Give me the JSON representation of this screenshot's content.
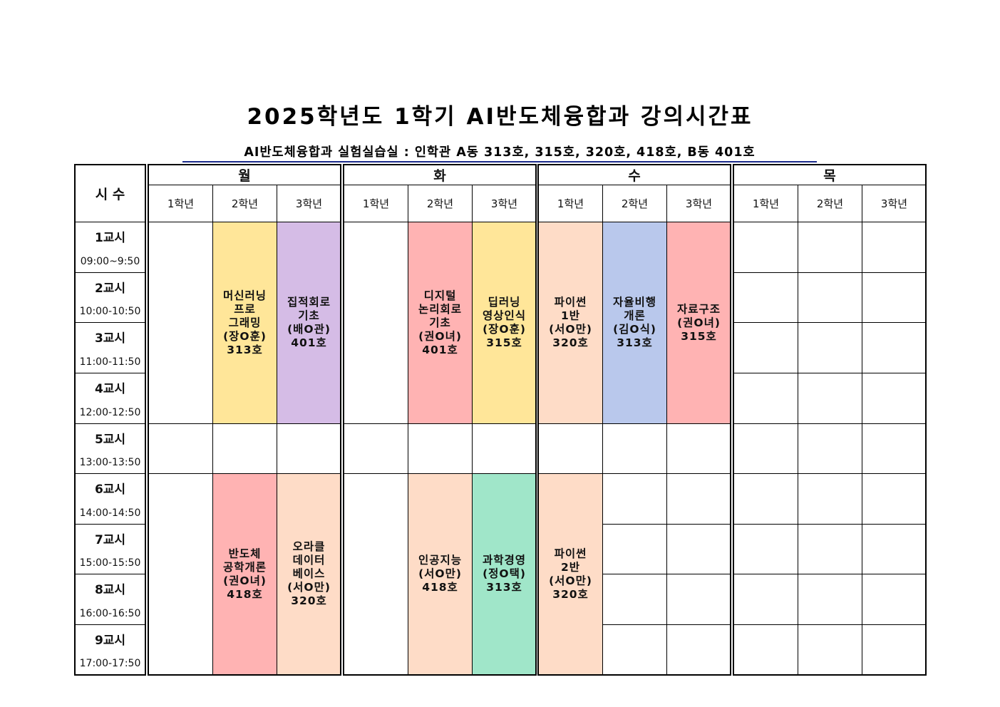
{
  "title": "2025학년도  1학기  AI반도체융합과  강의시간표",
  "subtitle": "AI반도체융합과 실험실습실 : 인학관 A동 313호, 315호, 320호, 418호, B동 401호",
  "time_header": "시 수",
  "grades": [
    "1학년",
    "2학년",
    "3학년"
  ],
  "periods": [
    {
      "label": "1교시",
      "time": "09:00~9:50"
    },
    {
      "label": "2교시",
      "time": "10:00-10:50"
    },
    {
      "label": "3교시",
      "time": "11:00-11:50"
    },
    {
      "label": "4교시",
      "time": "12:00-12:50"
    },
    {
      "label": "5교시",
      "time": "13:00-13:50"
    },
    {
      "label": "6교시",
      "time": "14:00-14:50"
    },
    {
      "label": "7교시",
      "time": "15:00-15:50"
    },
    {
      "label": "8교시",
      "time": "16:00-16:50"
    },
    {
      "label": "9교시",
      "time": "17:00-17:50"
    }
  ],
  "colors": {
    "yellow": "#FFE699",
    "purple": "#D5BCE6",
    "pink": "#FFB3B3",
    "peach": "#FEDCC7",
    "blue": "#B9C8EC",
    "green": "#A0E6C9",
    "white": "#FFFFFF"
  },
  "days": [
    {
      "name": "월",
      "cells": [
        {
          "grade": 0,
          "start": 1,
          "span": 4,
          "lines": [],
          "color": "white"
        },
        {
          "grade": 1,
          "start": 1,
          "span": 4,
          "lines": [
            "머신러닝",
            "프로",
            "그래밍",
            "(장O훈)",
            "313호"
          ],
          "color": "yellow"
        },
        {
          "grade": 2,
          "start": 1,
          "span": 4,
          "lines": [
            "집적회로",
            "기초",
            "(배O관)",
            "401호"
          ],
          "color": "purple"
        },
        {
          "grade": 0,
          "start": 6,
          "span": 4,
          "lines": [],
          "color": "white"
        },
        {
          "grade": 1,
          "start": 6,
          "span": 4,
          "lines": [
            "반도체",
            "공학개론",
            "(권O녀)",
            "418호"
          ],
          "color": "pink"
        },
        {
          "grade": 2,
          "start": 6,
          "span": 4,
          "lines": [
            "오라클",
            "데이터",
            "베이스",
            "(서O만)",
            "320호"
          ],
          "color": "peach"
        }
      ]
    },
    {
      "name": "화",
      "cells": [
        {
          "grade": 0,
          "start": 1,
          "span": 4,
          "lines": [],
          "color": "white"
        },
        {
          "grade": 1,
          "start": 1,
          "span": 4,
          "lines": [
            "디지털",
            "논리회로",
            "기초",
            "(권O녀)",
            "401호"
          ],
          "color": "pink"
        },
        {
          "grade": 2,
          "start": 1,
          "span": 4,
          "lines": [
            "딥러닝",
            "영상인식",
            "(장O훈)",
            "315호"
          ],
          "color": "yellow"
        },
        {
          "grade": 0,
          "start": 6,
          "span": 4,
          "lines": [],
          "color": "white"
        },
        {
          "grade": 1,
          "start": 6,
          "span": 4,
          "lines": [
            "인공지능",
            "(서O만)",
            "418호"
          ],
          "color": "peach"
        },
        {
          "grade": 2,
          "start": 6,
          "span": 4,
          "lines": [
            "과학경영",
            "(정O택)",
            "313호"
          ],
          "color": "green"
        }
      ]
    },
    {
      "name": "수",
      "cells": [
        {
          "grade": 0,
          "start": 1,
          "span": 4,
          "lines": [
            "파이썬",
            "1반",
            "(서O만)",
            "320호"
          ],
          "color": "peach"
        },
        {
          "grade": 1,
          "start": 1,
          "span": 4,
          "lines": [
            "자율비행",
            "개론",
            "(김O식)",
            "313호"
          ],
          "color": "blue"
        },
        {
          "grade": 2,
          "start": 1,
          "span": 4,
          "lines": [
            "자료구조",
            "(권O녀)",
            "315호"
          ],
          "color": "pink"
        },
        {
          "grade": 0,
          "start": 6,
          "span": 4,
          "lines": [
            "파이썬",
            "2반",
            "(서O만)",
            "320호"
          ],
          "color": "peach"
        }
      ]
    },
    {
      "name": "목",
      "cells": []
    }
  ]
}
